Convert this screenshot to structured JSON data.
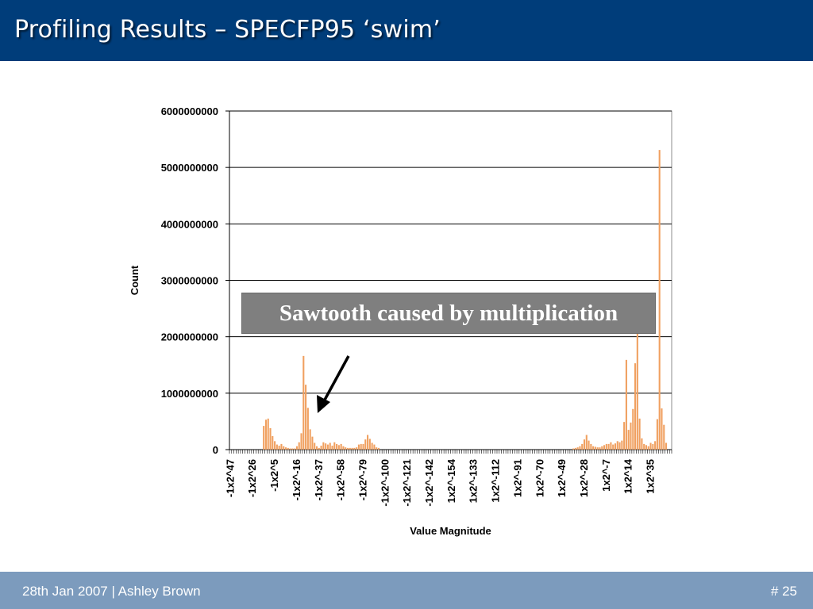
{
  "slide": {
    "title": "Profiling Results – SPECFP95 ‘swim’",
    "footer_left": "28th Jan 2007    |   Ashley Brown",
    "footer_right": "# 25",
    "callout": "Sawtooth caused by multiplication"
  },
  "colors": {
    "title_bar": "#003d7a",
    "footer_bar": "#7c9bbd",
    "bar": "#f0a060",
    "callout_bg": "#7f7f7f"
  },
  "chart_data": {
    "type": "bar",
    "title": "",
    "xlabel": "Value Magnitude",
    "ylabel": "Count",
    "ylim": [
      0,
      6000000000
    ],
    "yticks": [
      "0",
      "1000000000",
      "2000000000",
      "3000000000",
      "4000000000",
      "5000000000",
      "6000000000"
    ],
    "grid": true,
    "legend": "none",
    "category_count": 200,
    "tick_labels": [
      "-1x2^47",
      "-1x2^26",
      "-1x2^5",
      "-1x2^-16",
      "-1x2^-37",
      "-1x2^-58",
      "-1x2^-79",
      "-1x2^-100",
      "-1x2^-121",
      "-1x2^-142",
      "1x2^-154",
      "1x2^-133",
      "1x2^-112",
      "1x2^-91",
      "1x2^-70",
      "1x2^-49",
      "1x2^-28",
      "1x2^-7",
      "1x2^14",
      "1x2^35"
    ],
    "nonzero_bars": [
      [
        15,
        420000000
      ],
      [
        16,
        530000000
      ],
      [
        17,
        550000000
      ],
      [
        18,
        380000000
      ],
      [
        19,
        240000000
      ],
      [
        20,
        150000000
      ],
      [
        21,
        90000000
      ],
      [
        22,
        70000000
      ],
      [
        23,
        100000000
      ],
      [
        24,
        60000000
      ],
      [
        25,
        40000000
      ],
      [
        26,
        30000000
      ],
      [
        27,
        20000000
      ],
      [
        28,
        20000000
      ],
      [
        29,
        20000000
      ],
      [
        30,
        60000000
      ],
      [
        31,
        130000000
      ],
      [
        32,
        290000000
      ],
      [
        33,
        1660000000
      ],
      [
        34,
        1150000000
      ],
      [
        35,
        740000000
      ],
      [
        36,
        360000000
      ],
      [
        37,
        230000000
      ],
      [
        38,
        120000000
      ],
      [
        39,
        60000000
      ],
      [
        40,
        30000000
      ],
      [
        41,
        70000000
      ],
      [
        42,
        130000000
      ],
      [
        43,
        110000000
      ],
      [
        44,
        90000000
      ],
      [
        45,
        120000000
      ],
      [
        46,
        70000000
      ],
      [
        47,
        130000000
      ],
      [
        48,
        100000000
      ],
      [
        49,
        80000000
      ],
      [
        50,
        100000000
      ],
      [
        51,
        60000000
      ],
      [
        52,
        40000000
      ],
      [
        53,
        30000000
      ],
      [
        54,
        30000000
      ],
      [
        55,
        30000000
      ],
      [
        56,
        30000000
      ],
      [
        57,
        40000000
      ],
      [
        58,
        90000000
      ],
      [
        59,
        100000000
      ],
      [
        60,
        100000000
      ],
      [
        61,
        180000000
      ],
      [
        62,
        260000000
      ],
      [
        63,
        190000000
      ],
      [
        64,
        120000000
      ],
      [
        65,
        90000000
      ],
      [
        66,
        40000000
      ],
      [
        67,
        30000000
      ],
      [
        155,
        20000000
      ],
      [
        156,
        30000000
      ],
      [
        157,
        40000000
      ],
      [
        158,
        60000000
      ],
      [
        159,
        100000000
      ],
      [
        160,
        180000000
      ],
      [
        161,
        260000000
      ],
      [
        162,
        160000000
      ],
      [
        163,
        100000000
      ],
      [
        164,
        60000000
      ],
      [
        165,
        50000000
      ],
      [
        166,
        40000000
      ],
      [
        167,
        40000000
      ],
      [
        168,
        60000000
      ],
      [
        169,
        80000000
      ],
      [
        170,
        100000000
      ],
      [
        171,
        100000000
      ],
      [
        172,
        130000000
      ],
      [
        173,
        90000000
      ],
      [
        174,
        110000000
      ],
      [
        175,
        150000000
      ],
      [
        176,
        130000000
      ],
      [
        177,
        160000000
      ],
      [
        178,
        490000000
      ],
      [
        179,
        1590000000
      ],
      [
        180,
        350000000
      ],
      [
        181,
        480000000
      ],
      [
        182,
        720000000
      ],
      [
        183,
        1530000000
      ],
      [
        184,
        2080000000
      ],
      [
        185,
        550000000
      ],
      [
        186,
        200000000
      ],
      [
        187,
        100000000
      ],
      [
        188,
        80000000
      ],
      [
        189,
        60000000
      ],
      [
        190,
        120000000
      ],
      [
        191,
        100000000
      ],
      [
        192,
        150000000
      ],
      [
        193,
        540000000
      ],
      [
        194,
        5310000000
      ],
      [
        195,
        730000000
      ],
      [
        196,
        440000000
      ],
      [
        197,
        120000000
      ]
    ]
  }
}
